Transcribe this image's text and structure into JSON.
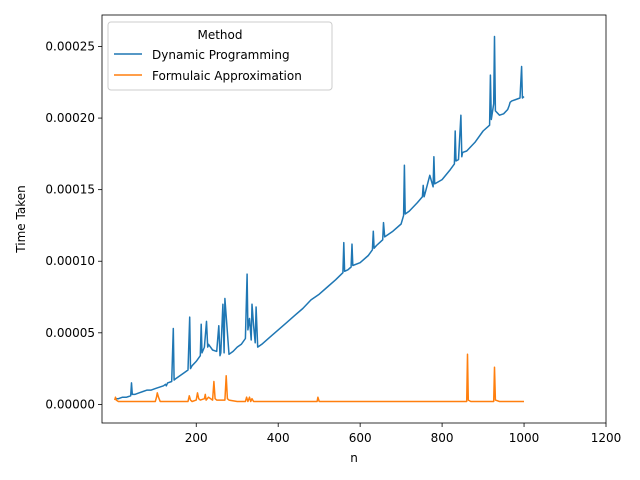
{
  "chart_data": {
    "type": "line",
    "title": "",
    "xlabel": "n",
    "ylabel": "Time Taken",
    "xlim": [
      -30,
      1200
    ],
    "ylim": [
      -1.3e-05,
      0.000272
    ],
    "xticks": [
      200,
      400,
      600,
      800,
      1000,
      1200
    ],
    "xtick_labels": [
      "200",
      "400",
      "600",
      "800",
      "1000",
      "1200"
    ],
    "yticks": [
      0,
      5e-05,
      0.0001,
      0.00015,
      0.0002,
      0.00025
    ],
    "ytick_labels": [
      "0.00000",
      "0.00005",
      "0.00010",
      "0.00015",
      "0.00020",
      "0.00025"
    ],
    "grid": false,
    "legend": {
      "title": "Method",
      "placement": "top-left"
    },
    "series": [
      {
        "name": "Dynamic Programming",
        "color": "#1f77b4",
        "x": [
          1,
          10,
          20,
          30,
          40,
          42,
          44,
          50,
          60,
          70,
          80,
          90,
          100,
          110,
          120,
          125,
          127,
          130,
          140,
          144,
          146,
          150,
          160,
          170,
          180,
          184,
          186,
          190,
          200,
          210,
          212,
          214,
          220,
          225,
          228,
          230,
          240,
          250,
          255,
          258,
          260,
          265,
          268,
          270,
          280,
          290,
          300,
          310,
          320,
          324,
          326,
          330,
          334,
          336,
          340,
          344,
          346,
          350,
          360,
          380,
          400,
          420,
          440,
          460,
          480,
          500,
          520,
          540,
          558,
          560,
          562,
          570,
          578,
          580,
          582,
          600,
          620,
          630,
          632,
          634,
          640,
          655,
          657,
          660,
          680,
          700,
          706,
          708,
          710,
          720,
          740,
          752,
          754,
          756,
          760,
          770,
          778,
          780,
          782,
          800,
          820,
          830,
          832,
          834,
          840,
          846,
          848,
          850,
          860,
          880,
          900,
          916,
          918,
          920,
          926,
          928,
          930,
          940,
          950,
          960,
          964,
          966,
          970,
          980,
          990,
          994,
          996,
          1000
        ],
        "y": [
          4e-06,
          4e-06,
          5e-06,
          5e-06,
          6e-06,
          1.5e-05,
          7e-06,
          7e-06,
          8e-06,
          9e-06,
          1e-05,
          1e-05,
          1.1e-05,
          1.2e-05,
          1.3e-05,
          1.4e-05,
          1.3e-05,
          1.5e-05,
          1.6e-05,
          5.3e-05,
          1.7e-05,
          1.8e-05,
          2e-05,
          2.2e-05,
          2.4e-05,
          6.1e-05,
          2.5e-05,
          2.7e-05,
          3e-05,
          3.4e-05,
          5.6e-05,
          3.6e-05,
          4e-05,
          5.8e-05,
          4e-05,
          4.2e-05,
          3.8e-05,
          3.7e-05,
          5.5e-05,
          3.4e-05,
          3.6e-05,
          7e-05,
          3.6e-05,
          7.4e-05,
          3.5e-05,
          3.7e-05,
          4e-05,
          4.2e-05,
          4.6e-05,
          9.1e-05,
          5.2e-05,
          6e-05,
          4.5e-05,
          7e-05,
          5.5e-05,
          4.3e-05,
          6.8e-05,
          4e-05,
          4.2e-05,
          4.7e-05,
          5.2e-05,
          5.7e-05,
          6.2e-05,
          6.7e-05,
          7.3e-05,
          7.7e-05,
          8.2e-05,
          8.7e-05,
          9.2e-05,
          0.000113,
          9.3e-05,
          9.4e-05,
          9.6e-05,
          0.000112,
          9.7e-05,
          9.9e-05,
          0.000104,
          0.000108,
          0.000121,
          0.000109,
          0.000111,
          0.000115,
          0.000127,
          0.000117,
          0.000121,
          0.000126,
          0.000132,
          0.000167,
          0.000133,
          0.000135,
          0.000141,
          0.000145,
          0.000153,
          0.000145,
          0.000149,
          0.00016,
          0.000152,
          0.000173,
          0.000154,
          0.000157,
          0.000164,
          0.000168,
          0.000191,
          0.00017,
          0.000171,
          0.000202,
          0.000173,
          0.000176,
          0.000177,
          0.000183,
          0.000191,
          0.000195,
          0.00023,
          0.000199,
          0.00021,
          0.000257,
          0.000205,
          0.000202,
          0.000203,
          0.000206,
          0.000209,
          0.000211,
          0.000212,
          0.000213,
          0.000214,
          0.000236,
          0.000214,
          0.000215
        ]
      },
      {
        "name": "Formulaic Approximation",
        "color": "#ff7f0e",
        "x": [
          1,
          3,
          5,
          10,
          50,
          100,
          103,
          105,
          108,
          112,
          150,
          180,
          183,
          186,
          190,
          200,
          203,
          206,
          210,
          220,
          222,
          224,
          230,
          240,
          243,
          246,
          250,
          260,
          270,
          273,
          276,
          280,
          300,
          320,
          323,
          326,
          330,
          333,
          336,
          340,
          400,
          450,
          495,
          497,
          500,
          550,
          600,
          700,
          800,
          850,
          860,
          862,
          864,
          870,
          900,
          920,
          926,
          928,
          930,
          940,
          1000
        ],
        "y": [
          3e-06,
          5e-06,
          3e-06,
          2e-06,
          2e-06,
          2e-06,
          5e-06,
          8e-06,
          5e-06,
          2e-06,
          2e-06,
          2e-06,
          6e-06,
          3e-06,
          2e-06,
          3e-06,
          8e-06,
          4e-06,
          3e-06,
          4e-06,
          7e-06,
          3e-06,
          5e-06,
          3e-06,
          1.6e-05,
          4e-06,
          3e-06,
          3e-06,
          3e-06,
          2e-05,
          4e-06,
          3e-06,
          2e-06,
          2e-06,
          5e-06,
          2e-06,
          5e-06,
          2e-06,
          4e-06,
          2e-06,
          2e-06,
          2e-06,
          2e-06,
          5e-06,
          2e-06,
          2e-06,
          2e-06,
          2e-06,
          2e-06,
          2e-06,
          2e-06,
          3.5e-05,
          3e-06,
          2e-06,
          2e-06,
          2e-06,
          2e-06,
          2.6e-05,
          3e-06,
          2e-06,
          2e-06
        ]
      }
    ]
  }
}
